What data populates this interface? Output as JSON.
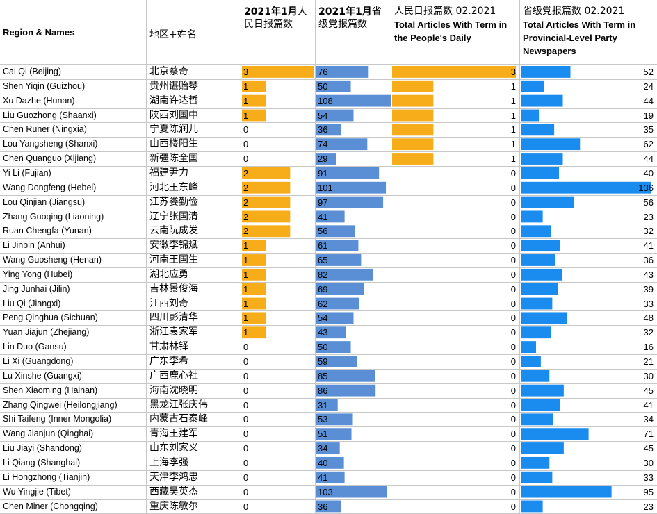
{
  "headers": {
    "region_names": "Region & Names",
    "cn_names": "地区+姓名",
    "jan_pd_lead": "2021年1月",
    "jan_pd_rest": "人民日报篇数",
    "jan_prov_lead": "2021年1月",
    "jan_prov_rest": "省级党报篇数",
    "feb_pd_cn": "人民日报篇数 02.2021",
    "feb_pd_en": "Total Articles With Term in the People's Daily",
    "feb_prov_cn": "省级党报篇数 02.2021",
    "feb_prov_en": "Total Articles With Term in Provincial-Level Party Newspapers"
  },
  "colors": {
    "orange": "#f7ad19",
    "blue_light": "#5b8fd5",
    "blue_bright": "#1a8cf0",
    "grid": "#c8c8c8"
  },
  "chart_data": {
    "type": "table",
    "rows": [
      {
        "en": "Cai Qi (Beijing)",
        "cn": "北京蔡奇",
        "jan_pd": 3,
        "jan_prov": 76,
        "feb_pd": 3,
        "feb_prov": 52
      },
      {
        "en": "Shen Yiqin (Guizhou)",
        "cn": "贵州谌贻琴",
        "jan_pd": 1,
        "jan_prov": 50,
        "feb_pd": 1,
        "feb_prov": 24
      },
      {
        "en": "Xu Dazhe (Hunan)",
        "cn": "湖南许达哲",
        "jan_pd": 1,
        "jan_prov": 108,
        "feb_pd": 1,
        "feb_prov": 44
      },
      {
        "en": "Liu Guozhong (Shaanxi)",
        "cn": "陕西刘国中",
        "jan_pd": 1,
        "jan_prov": 54,
        "feb_pd": 1,
        "feb_prov": 19
      },
      {
        "en": "Chen Runer (Ningxia)",
        "cn": "宁夏陈润儿",
        "jan_pd": 0,
        "jan_prov": 36,
        "feb_pd": 1,
        "feb_prov": 35
      },
      {
        "en": "Lou Yangsheng (Shanxi)",
        "cn": "山西楼阳生",
        "jan_pd": 0,
        "jan_prov": 74,
        "feb_pd": 1,
        "feb_prov": 62
      },
      {
        "en": "Chen Quanguo (Xijiang)",
        "cn": "新疆陈全国",
        "jan_pd": 0,
        "jan_prov": 29,
        "feb_pd": 1,
        "feb_prov": 44
      },
      {
        "en": "Yi Li (Fujian)",
        "cn": "福建尹力",
        "jan_pd": 2,
        "jan_prov": 91,
        "feb_pd": 0,
        "feb_prov": 40
      },
      {
        "en": "Wang Dongfeng (Hebei)",
        "cn": "河北王东峰",
        "jan_pd": 2,
        "jan_prov": 101,
        "feb_pd": 0,
        "feb_prov": 136
      },
      {
        "en": "Lou Qinjian (Jiangsu)",
        "cn": "江苏娄勤俭",
        "jan_pd": 2,
        "jan_prov": 97,
        "feb_pd": 0,
        "feb_prov": 56
      },
      {
        "en": "Zhang Guoqing (Liaoning)",
        "cn": "辽宁张国清",
        "jan_pd": 2,
        "jan_prov": 41,
        "feb_pd": 0,
        "feb_prov": 23
      },
      {
        "en": "Ruan Chengfa (Yunan)",
        "cn": "云南阮成发",
        "jan_pd": 2,
        "jan_prov": 56,
        "feb_pd": 0,
        "feb_prov": 32
      },
      {
        "en": "Li Jinbin (Anhui)",
        "cn": "安徽李锦斌",
        "jan_pd": 1,
        "jan_prov": 61,
        "feb_pd": 0,
        "feb_prov": 41
      },
      {
        "en": "Wang Guosheng (Henan)",
        "cn": "河南王国生",
        "jan_pd": 1,
        "jan_prov": 65,
        "feb_pd": 0,
        "feb_prov": 36
      },
      {
        "en": "Ying Yong (Hubei)",
        "cn": "湖北应勇",
        "jan_pd": 1,
        "jan_prov": 82,
        "feb_pd": 0,
        "feb_prov": 43
      },
      {
        "en": "Jing Junhai (Jilin)",
        "cn": "吉林景俊海",
        "jan_pd": 1,
        "jan_prov": 69,
        "feb_pd": 0,
        "feb_prov": 39
      },
      {
        "en": "Liu Qi (Jiangxi)",
        "cn": "江西刘奇",
        "jan_pd": 1,
        "jan_prov": 62,
        "feb_pd": 0,
        "feb_prov": 33
      },
      {
        "en": "Peng Qinghua (Sichuan)",
        "cn": "四川彭清华",
        "jan_pd": 1,
        "jan_prov": 54,
        "feb_pd": 0,
        "feb_prov": 48
      },
      {
        "en": "Yuan Jiajun (Zhejiang)",
        "cn": "浙江袁家军",
        "jan_pd": 1,
        "jan_prov": 43,
        "feb_pd": 0,
        "feb_prov": 32
      },
      {
        "en": "Lin Duo (Gansu)",
        "cn": "甘肃林铎",
        "jan_pd": 0,
        "jan_prov": 50,
        "feb_pd": 0,
        "feb_prov": 16
      },
      {
        "en": "Li Xi (Guangdong)",
        "cn": "广东李希",
        "jan_pd": 0,
        "jan_prov": 59,
        "feb_pd": 0,
        "feb_prov": 21
      },
      {
        "en": "Lu Xinshe (Guangxi)",
        "cn": "广西鹿心社",
        "jan_pd": 0,
        "jan_prov": 85,
        "feb_pd": 0,
        "feb_prov": 30
      },
      {
        "en": "Shen Xiaoming (Hainan)",
        "cn": "海南沈晓明",
        "jan_pd": 0,
        "jan_prov": 86,
        "feb_pd": 0,
        "feb_prov": 45
      },
      {
        "en": "Zhang Qingwei (Heilongjiang)",
        "cn": "黑龙江张庆伟",
        "jan_pd": 0,
        "jan_prov": 31,
        "feb_pd": 0,
        "feb_prov": 41
      },
      {
        "en": "Shi Taifeng (Inner Mongolia)",
        "cn": "内蒙古石泰峰",
        "jan_pd": 0,
        "jan_prov": 53,
        "feb_pd": 0,
        "feb_prov": 34
      },
      {
        "en": "Wang Jianjun (Qinghai)",
        "cn": "青海王建军",
        "jan_pd": 0,
        "jan_prov": 51,
        "feb_pd": 0,
        "feb_prov": 71
      },
      {
        "en": "Liu Jiayi (Shandong)",
        "cn": "山东刘家义",
        "jan_pd": 0,
        "jan_prov": 34,
        "feb_pd": 0,
        "feb_prov": 45
      },
      {
        "en": "Li Qiang (Shanghai)",
        "cn": "上海李强",
        "jan_pd": 0,
        "jan_prov": 40,
        "feb_pd": 0,
        "feb_prov": 30
      },
      {
        "en": "Li Hongzhong (Tianjin)",
        "cn": "天津李鸿忠",
        "jan_pd": 0,
        "jan_prov": 41,
        "feb_pd": 0,
        "feb_prov": 33
      },
      {
        "en": "Wu Yingjie (Tibet)",
        "cn": "西藏吴英杰",
        "jan_pd": 0,
        "jan_prov": 103,
        "feb_pd": 0,
        "feb_prov": 95
      },
      {
        "en": "Chen Miner (Chongqing)",
        "cn": "重庆陈敏尔",
        "jan_pd": 0,
        "jan_prov": 36,
        "feb_pd": 0,
        "feb_prov": 23
      }
    ]
  }
}
